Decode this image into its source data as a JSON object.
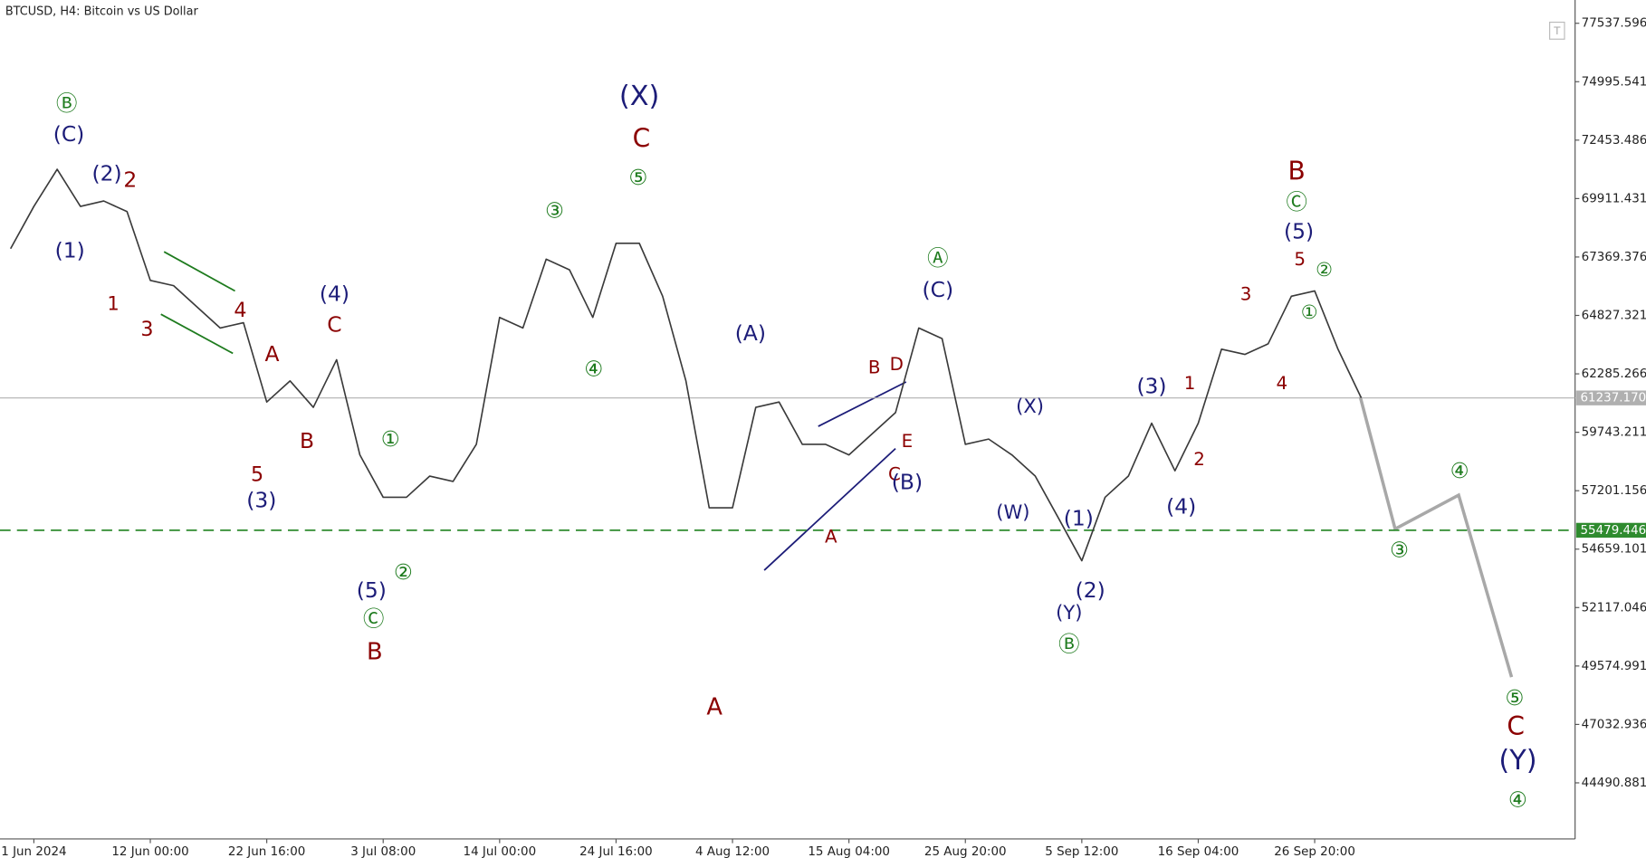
{
  "chart_data": {
    "type": "line",
    "title": "BTCUSD, H4:  Bitcoin vs US Dollar",
    "categories": [
      null,
      "1 Jun 2024",
      null,
      null,
      null,
      null,
      "12 Jun 00:00",
      null,
      null,
      null,
      null,
      "22 Jun 16:00",
      null,
      null,
      null,
      null,
      "3 Jul 08:00",
      null,
      null,
      null,
      null,
      "14 Jul 00:00",
      null,
      null,
      null,
      null,
      "24 Jul 16:00",
      null,
      null,
      null,
      null,
      "4 Aug 12:00",
      null,
      null,
      null,
      null,
      "15 Aug 04:00",
      null,
      null,
      null,
      null,
      "25 Aug 20:00",
      null,
      null,
      null,
      null,
      "5 Sep 12:00",
      null,
      null,
      null,
      null,
      "16 Sep 04:00",
      null,
      null,
      null,
      null,
      "26 Sep 20:00",
      null,
      null
    ],
    "series": [
      {
        "color": "#3a3a3a",
        "values": [
          67730,
          69570,
          71185,
          69570,
          69806,
          69344,
          66352,
          66122,
          65201,
          64280,
          64511,
          61059,
          61979,
          60828,
          62900,
          58757,
          56916,
          56916,
          57837,
          57606,
          59217,
          64741,
          64280,
          67273,
          66812,
          64741,
          67963,
          67963,
          65662,
          61979,
          56456,
          56456,
          60828,
          61059,
          59217,
          59217,
          58757,
          59678,
          60598,
          64280,
          63820,
          59217,
          59448,
          58757,
          57837,
          56005,
          54154,
          56916,
          57837,
          60138,
          58067,
          60138,
          63360,
          63130,
          63590,
          65662,
          65892,
          63360,
          61240
        ]
      }
    ],
    "ylim": [
      42050,
      78550
    ],
    "yticks": [
      77537.596,
      74995.541,
      72453.486,
      69911.431,
      67369.376,
      64827.321,
      62285.266,
      59743.211,
      57201.156,
      54659.101,
      52117.046,
      49574.991,
      47032.936,
      44490.881
    ],
    "current_price": {
      "value": 61237.17,
      "label": "61237.170",
      "color": "#b0b0b0"
    },
    "level": {
      "value": 55479.446,
      "color": "#2e8b2e"
    },
    "annotations": [
      {
        "text": "Ⓑ",
        "color": "#1e7b1e"
      },
      {
        "text": "(C)",
        "color": "#1c1c78"
      },
      {
        "text": "(2)",
        "color": "#1c1c78"
      },
      {
        "text": "2",
        "color": "#8b0000"
      },
      {
        "text": "(1)",
        "color": "#1c1c78"
      },
      {
        "text": "1",
        "color": "#8b0000"
      },
      {
        "text": "3",
        "color": "#8b0000"
      },
      {
        "text": "4",
        "color": "#8b0000"
      },
      {
        "text": "A",
        "color": "#8b0000"
      },
      {
        "text": "(4)",
        "color": "#1c1c78"
      },
      {
        "text": "C",
        "color": "#8b0000"
      },
      {
        "text": "B",
        "color": "#8b0000"
      },
      {
        "text": "5",
        "color": "#8b0000"
      },
      {
        "text": "(3)",
        "color": "#1c1c78"
      },
      {
        "text": "①",
        "color": "#1e7b1e"
      },
      {
        "text": "(5)",
        "color": "#1c1c78"
      },
      {
        "text": "②",
        "color": "#1e7b1e"
      },
      {
        "text": "Ⓒ",
        "color": "#1e7b1e"
      },
      {
        "text": "B",
        "color": "#8b0000"
      },
      {
        "text": "③",
        "color": "#1e7b1e"
      },
      {
        "text": "(X)",
        "color": "#1c1c78"
      },
      {
        "text": "C",
        "color": "#8b0000"
      },
      {
        "text": "⑤",
        "color": "#1e7b1e"
      },
      {
        "text": "④",
        "color": "#1e7b1e"
      },
      {
        "text": "(A)",
        "color": "#1c1c78"
      },
      {
        "text": "A",
        "color": "#8b0000"
      },
      {
        "text": "B",
        "color": "#8b0000"
      },
      {
        "text": "D",
        "color": "#8b0000"
      },
      {
        "text": "E",
        "color": "#8b0000"
      },
      {
        "text": "C",
        "color": "#8b0000"
      },
      {
        "text": "(B)",
        "color": "#1c1c78"
      },
      {
        "text": "A",
        "color": "#8b0000"
      },
      {
        "text": "Ⓐ",
        "color": "#1e7b1e"
      },
      {
        "text": "(C)",
        "color": "#1c1c78"
      },
      {
        "text": "(X)",
        "color": "#1c1c78"
      },
      {
        "text": "(W)",
        "color": "#1c1c78"
      },
      {
        "text": "(1)",
        "color": "#1c1c78"
      },
      {
        "text": "(2)",
        "color": "#1c1c78"
      },
      {
        "text": "(Y)",
        "color": "#1c1c78"
      },
      {
        "text": "Ⓑ",
        "color": "#1e7b1e"
      },
      {
        "text": "(3)",
        "color": "#1c1c78"
      },
      {
        "text": "1",
        "color": "#8b0000"
      },
      {
        "text": "2",
        "color": "#8b0000"
      },
      {
        "text": "(4)",
        "color": "#1c1c78"
      },
      {
        "text": "3",
        "color": "#8b0000"
      },
      {
        "text": "4",
        "color": "#8b0000"
      },
      {
        "text": "B",
        "color": "#8b0000"
      },
      {
        "text": "Ⓒ",
        "color": "#1e7b1e"
      },
      {
        "text": "(5)",
        "color": "#1c1c78"
      },
      {
        "text": "5",
        "color": "#8b0000"
      },
      {
        "text": "②",
        "color": "#1e7b1e"
      },
      {
        "text": "①",
        "color": "#1e7b1e"
      },
      {
        "text": "④",
        "color": "#1e7b1e"
      },
      {
        "text": "③",
        "color": "#1e7b1e"
      },
      {
        "text": "⑤",
        "color": "#1e7b1e"
      },
      {
        "text": "C",
        "color": "#8b0000"
      },
      {
        "text": "(Y)",
        "color": "#1c1c78"
      },
      {
        "text": "④",
        "color": "#1e7b1e"
      }
    ]
  }
}
